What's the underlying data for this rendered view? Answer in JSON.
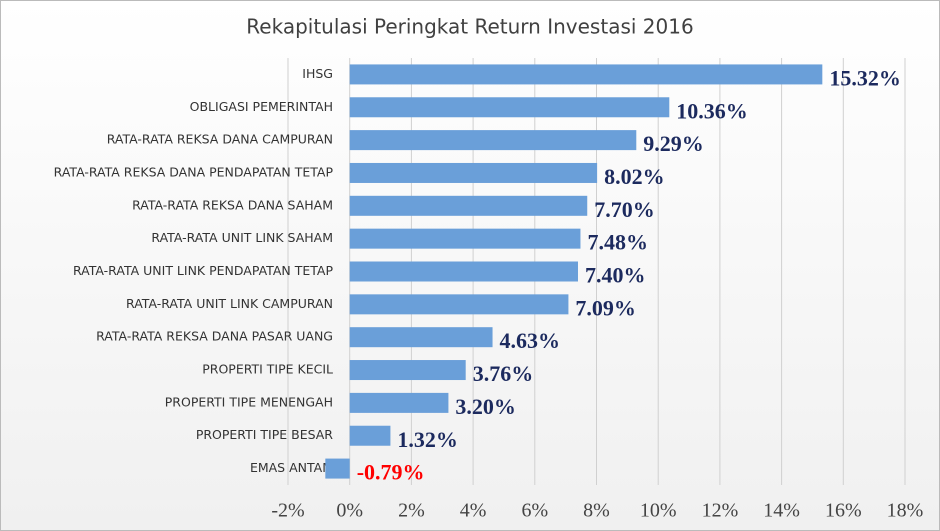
{
  "chart_data": {
    "type": "hbar",
    "title": "Rekapitulasi Peringkat Return Investasi 2016",
    "categories": [
      "IHSG",
      "OBLIGASI PEMERINTAH",
      "RATA-RATA REKSA DANA CAMPURAN",
      "RATA-RATA REKSA DANA PENDAPATAN TETAP",
      "RATA-RATA REKSA DANA SAHAM",
      "RATA-RATA UNIT LINK SAHAM",
      "RATA-RATA UNIT LINK PENDAPATAN TETAP",
      "RATA-RATA UNIT LINK CAMPURAN",
      "RATA-RATA REKSA DANA PASAR UANG",
      "PROPERTI TIPE KECIL",
      "PROPERTI TIPE MENENGAH",
      "PROPERTI TIPE BESAR",
      "EMAS ANTAM"
    ],
    "values": [
      15.32,
      10.36,
      9.29,
      8.02,
      7.7,
      7.48,
      7.4,
      7.09,
      4.63,
      3.76,
      3.2,
      1.32,
      -0.79
    ],
    "value_labels": [
      "15.32%",
      "10.36%",
      "9.29%",
      "8.02%",
      "7.70%",
      "7.48%",
      "7.40%",
      "7.09%",
      "4.63%",
      "3.76%",
      "3.20%",
      "1.32%",
      "-0.79%"
    ],
    "color": "#6a9fd9",
    "label_color": "#1c2a5e",
    "negative_label_color": "#ff0000",
    "xlim": [
      -2,
      18
    ],
    "xticks": [
      {
        "value": -2,
        "label": "-2%"
      },
      {
        "value": 0,
        "label": "0%"
      },
      {
        "value": 2,
        "label": "2%"
      },
      {
        "value": 4,
        "label": "4%"
      },
      {
        "value": 6,
        "label": "6%"
      },
      {
        "value": 8,
        "label": "8%"
      },
      {
        "value": 10,
        "label": "10%"
      },
      {
        "value": 12,
        "label": "12%"
      },
      {
        "value": 14,
        "label": "14%"
      },
      {
        "value": 16,
        "label": "16%"
      },
      {
        "value": 18,
        "label": "18%"
      }
    ],
    "grid": true
  }
}
